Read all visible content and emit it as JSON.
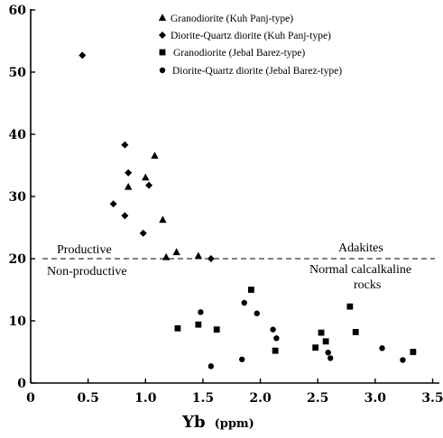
{
  "chart_data": {
    "type": "scatter",
    "title": "",
    "xlabel": "Yb",
    "xlabel_unit": "(ppm)",
    "ylabel": "",
    "xlim": [
      0,
      3.5
    ],
    "ylim": [
      0,
      60
    ],
    "x_ticks": [
      "0",
      "0.5",
      "1.0",
      "1.5",
      "2.0",
      "2.5",
      "3.0",
      "3.5"
    ],
    "y_ticks": [
      "0",
      "10",
      "20",
      "30",
      "40",
      "50",
      "60"
    ],
    "legend_position": "top-right",
    "series": [
      {
        "name": "Granodiorite (Kuh Panj-type)",
        "marker": "triangle",
        "color": "#000000",
        "points": [
          [
            0.85,
            31.5
          ],
          [
            1.0,
            33
          ],
          [
            1.08,
            36.5
          ],
          [
            1.15,
            26.2
          ],
          [
            1.18,
            20.2
          ],
          [
            1.27,
            21
          ],
          [
            1.46,
            20.4
          ]
        ]
      },
      {
        "name": "Diorite-Quartz diorite (Kuh Panj-type)",
        "marker": "diamond",
        "color": "#000000",
        "points": [
          [
            0.45,
            52.7
          ],
          [
            0.72,
            28.8
          ],
          [
            0.82,
            38.3
          ],
          [
            0.82,
            26.9
          ],
          [
            0.85,
            33.8
          ],
          [
            0.98,
            24.1
          ],
          [
            1.03,
            31.8
          ],
          [
            1.57,
            20
          ]
        ]
      },
      {
        "name": "Granodiorite (Jebal Barez-type)",
        "marker": "square",
        "color": "#000000",
        "points": [
          [
            1.28,
            8.8
          ],
          [
            1.46,
            9.4
          ],
          [
            1.62,
            8.6
          ],
          [
            1.92,
            15
          ],
          [
            2.13,
            5.2
          ],
          [
            2.48,
            5.7
          ],
          [
            2.53,
            8.1
          ],
          [
            2.57,
            6.7
          ],
          [
            2.78,
            12.3
          ],
          [
            2.83,
            8.2
          ],
          [
            3.33,
            5
          ]
        ]
      },
      {
        "name": "Diorite-Quartz diorite (Jebal Barez-type)",
        "marker": "circle",
        "color": "#000000",
        "points": [
          [
            1.48,
            11.4
          ],
          [
            1.57,
            2.7
          ],
          [
            1.84,
            3.8
          ],
          [
            1.86,
            12.9
          ],
          [
            1.97,
            11.2
          ],
          [
            2.11,
            8.6
          ],
          [
            2.14,
            7.2
          ],
          [
            2.59,
            4.9
          ],
          [
            2.61,
            4
          ],
          [
            3.06,
            5.6
          ],
          [
            3.24,
            3.7
          ]
        ]
      }
    ],
    "reference_line": {
      "y": 20,
      "style": "dashed"
    },
    "annotations": {
      "productive": "Productive",
      "non_productive": "Non-productive",
      "adakites": "Adakites",
      "normal_line1": "Normal calcalkaline",
      "normal_line2": "rocks"
    }
  }
}
